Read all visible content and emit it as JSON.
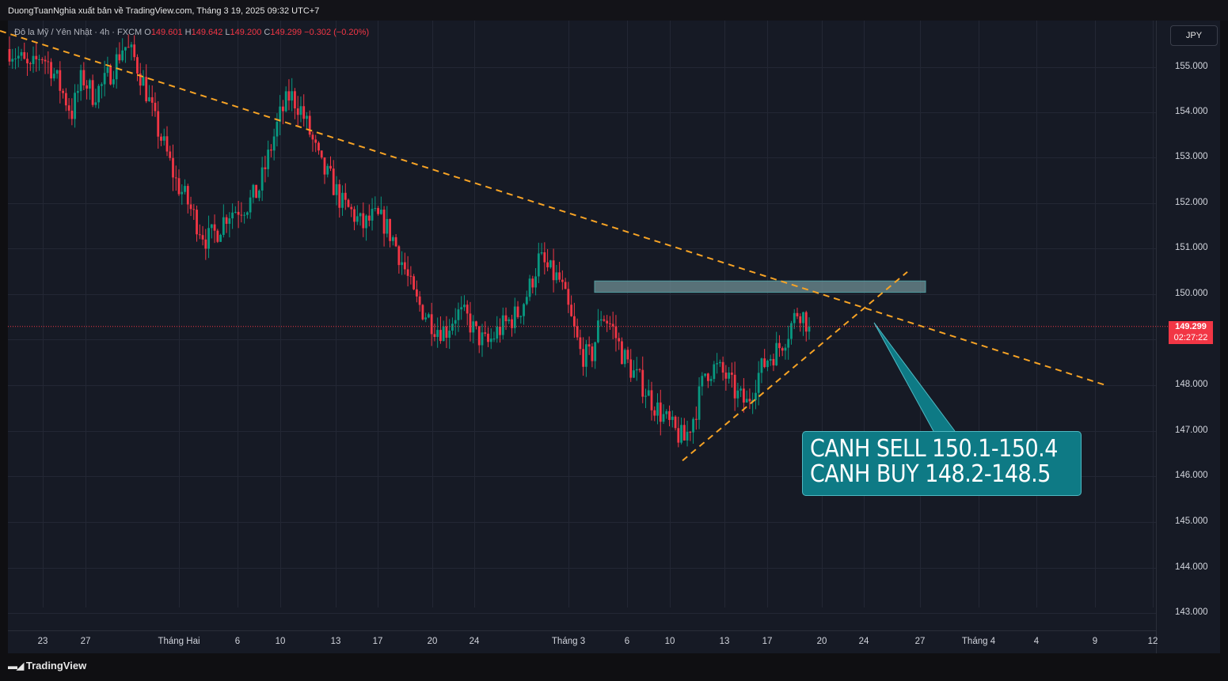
{
  "publisher_line": "DuongTuanNghia xuất bản về TradingView.com, Tháng 3 19, 2025 09:32 UTC+7",
  "symbol": {
    "title": "Đô la Mỹ / Yên Nhật · 4h · FXCM",
    "open_label": "O",
    "open": "149.601",
    "high_label": "H",
    "high": "149.642",
    "low_label": "L",
    "low": "149.200",
    "close_label": "C",
    "close": "149.299",
    "change": "−0.302 (−0.20%)"
  },
  "currency_button": "JPY",
  "last_price": {
    "price": "149.299",
    "countdown": "02:27:22"
  },
  "callout": {
    "line1": "CANH SELL 150.1-150.4",
    "line2": "CANH BUY 148.2-148.5"
  },
  "footer_logo": "TradingView",
  "colors": {
    "up": "#089981",
    "down": "#f23645",
    "trendline": "#f7a325",
    "callout_bg": "#0e7a85",
    "zone": "#4f9c9f"
  },
  "chart_data": {
    "type": "candlestick",
    "y_ticks": [
      "155.000",
      "154.000",
      "153.000",
      "152.000",
      "151.000",
      "150.000",
      "149.000",
      "148.000",
      "147.000",
      "146.000",
      "145.000",
      "144.000",
      "143.000"
    ],
    "x_ticks": [
      "23",
      "27",
      "Tháng Hai",
      "6",
      "10",
      "13",
      "17",
      "20",
      "24",
      "Tháng 3",
      "6",
      "10",
      "13",
      "17",
      "20",
      "24",
      "27",
      "Tháng 4",
      "4",
      "9",
      "12"
    ],
    "ylim": [
      142.7,
      156.0
    ],
    "price_path": [
      155.4,
      155.2,
      154.9,
      155.3,
      155.0,
      154.5,
      154.0,
      154.8,
      154.4,
      154.6,
      155.0,
      155.5,
      155.2,
      154.6,
      153.8,
      153.2,
      152.5,
      152.1,
      151.6,
      151.2,
      151.4,
      151.8,
      151.9,
      152.0,
      152.3,
      153.1,
      153.9,
      154.4,
      154.1,
      153.5,
      152.8,
      152.5,
      152.0,
      151.8,
      151.5,
      151.7,
      151.6,
      151.2,
      150.6,
      149.9,
      149.6,
      149.3,
      149.2,
      149.6,
      149.5,
      149.1,
      148.9,
      149.2,
      149.4,
      149.6,
      150.1,
      150.8,
      150.5,
      150.3,
      149.5,
      148.7,
      148.6,
      149.6,
      149.3,
      148.7,
      148.3,
      148.0,
      147.6,
      147.3,
      147.0,
      146.8,
      147.4,
      148.3,
      148.4,
      148.2,
      147.8,
      147.6,
      148.2,
      148.6,
      148.8,
      149.2,
      149.7,
      149.3
    ],
    "trendlines": [
      {
        "name": "downtrend",
        "points": [
          [
            0,
            155.8
          ],
          [
            1398,
            148.0
          ]
        ]
      },
      {
        "name": "uptrend",
        "points": [
          [
            862,
            146.35
          ],
          [
            1146,
            150.5
          ]
        ]
      }
    ],
    "resistance_zone": [
      150.05,
      150.3
    ],
    "last_price": 149.299
  }
}
